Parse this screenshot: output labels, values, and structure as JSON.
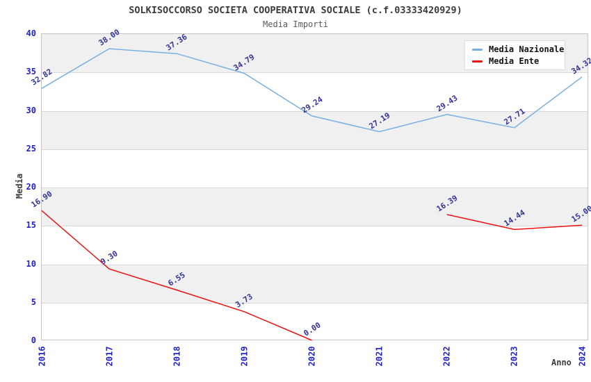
{
  "title": "SOLKISOCCORSO SOCIETA COOPERATIVA SOCIALE (c.f.03333420929)",
  "subtitle": "Media Importi",
  "legend": {
    "items": [
      {
        "label": "Media Nazionale",
        "color": "#79afe1"
      },
      {
        "label": "Media Ente",
        "color": "#ee1111"
      }
    ]
  },
  "colors": {
    "nazionale_line": "#79afe1",
    "ente_line": "#ee1111",
    "tick_label": "#2222cc",
    "data_label": "#333399",
    "band_gray": "#f0f0f0",
    "grid": "#d9d9d9"
  },
  "chart_data": {
    "type": "line",
    "x": [
      2016,
      2017,
      2018,
      2019,
      2020,
      2021,
      2022,
      2023,
      2024
    ],
    "series": [
      {
        "name": "Media Nazionale",
        "color": "#79afe1",
        "values": [
          32.82,
          38.0,
          37.36,
          34.79,
          29.24,
          27.19,
          29.43,
          27.71,
          34.32
        ]
      },
      {
        "name": "Media Ente",
        "color": "#ee1111",
        "values": [
          16.9,
          9.3,
          6.55,
          3.73,
          0.0,
          null,
          16.39,
          14.44,
          15.0
        ]
      }
    ],
    "title": "SOLKISOCCORSO SOCIETA COOPERATIVA SOCIALE (c.f.03333420929)",
    "subtitle": "Media Importi",
    "xlabel": "Anno",
    "ylabel": "Media",
    "ylim": [
      0,
      40
    ],
    "yticks": [
      0,
      5,
      10,
      15,
      20,
      25,
      30,
      35,
      40
    ],
    "grid": "horizontal",
    "banding": "alternating-gray",
    "legend_position": "top-right",
    "point_labels": "value with 2 decimals, rotated"
  }
}
